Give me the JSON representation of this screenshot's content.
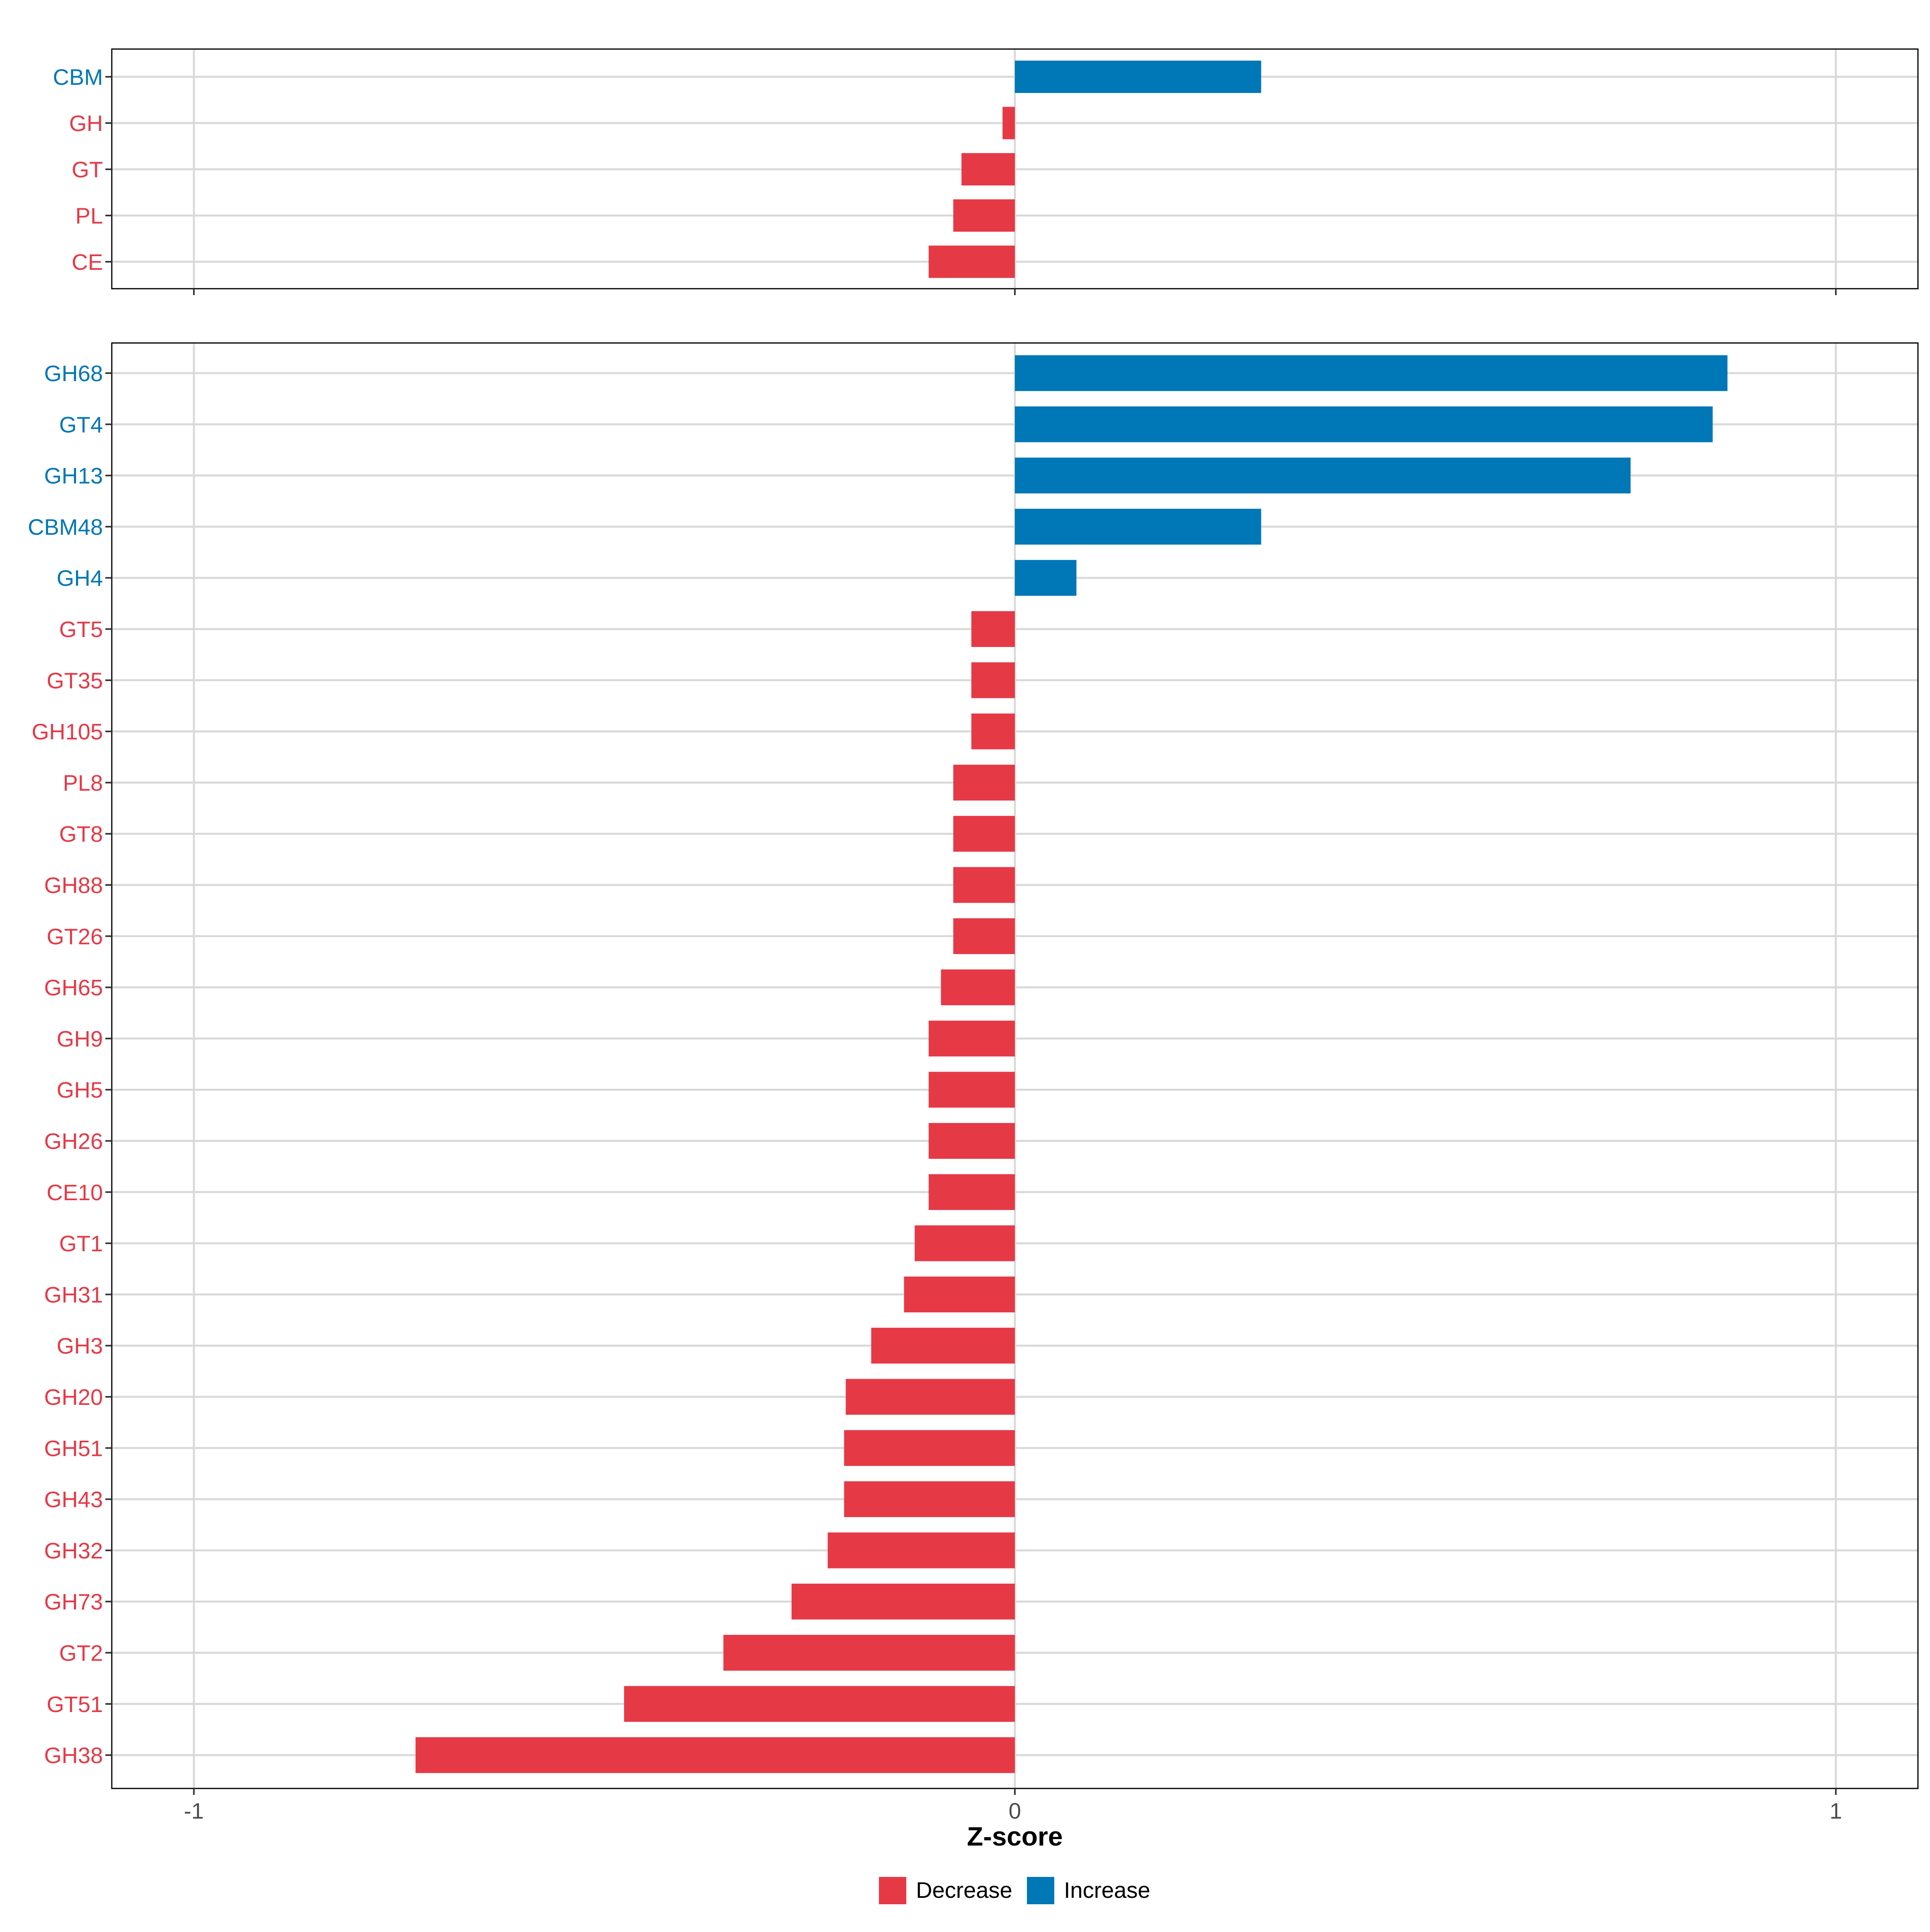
{
  "chart_data": [
    {
      "type": "bar",
      "orientation": "horizontal",
      "panel": "top",
      "categories": [
        "CBM",
        "GH",
        "GT",
        "PL",
        "CE"
      ],
      "values": [
        0.3,
        -0.015,
        -0.065,
        -0.075,
        -0.105
      ],
      "groups": [
        "Increase",
        "Decrease",
        "Decrease",
        "Decrease",
        "Decrease"
      ],
      "xlim": [
        -1.1,
        1.1
      ],
      "grid": true
    },
    {
      "type": "bar",
      "orientation": "horizontal",
      "panel": "bottom",
      "categories": [
        "GH68",
        "GT4",
        "GH13",
        "CBM48",
        "GH4",
        "GT5",
        "GT35",
        "GH105",
        "PL8",
        "GT8",
        "GH88",
        "GT26",
        "GH65",
        "GH9",
        "GH5",
        "GH26",
        "CE10",
        "GT1",
        "GH31",
        "GH3",
        "GH20",
        "GH51",
        "GH43",
        "GH32",
        "GH73",
        "GT2",
        "GT51",
        "GH38"
      ],
      "values": [
        0.868,
        0.85,
        0.75,
        0.3,
        0.075,
        -0.053,
        -0.053,
        -0.053,
        -0.075,
        -0.075,
        -0.075,
        -0.075,
        -0.09,
        -0.105,
        -0.105,
        -0.105,
        -0.105,
        -0.122,
        -0.135,
        -0.175,
        -0.206,
        -0.208,
        -0.208,
        -0.228,
        -0.272,
        -0.355,
        -0.476,
        -0.73
      ],
      "groups": [
        "Increase",
        "Increase",
        "Increase",
        "Increase",
        "Increase",
        "Decrease",
        "Decrease",
        "Decrease",
        "Decrease",
        "Decrease",
        "Decrease",
        "Decrease",
        "Decrease",
        "Decrease",
        "Decrease",
        "Decrease",
        "Decrease",
        "Decrease",
        "Decrease",
        "Decrease",
        "Decrease",
        "Decrease",
        "Decrease",
        "Decrease",
        "Decrease",
        "Decrease",
        "Decrease",
        "Decrease"
      ],
      "xlim": [
        -1.1,
        1.1
      ],
      "grid": true,
      "xticks": [
        -1,
        0,
        1
      ],
      "xtick_labels": [
        "-1",
        "0",
        "1"
      ],
      "xlabel": "Z-score"
    }
  ],
  "legend": {
    "position": "bottom",
    "entries": [
      {
        "label": "Decrease",
        "color": "#E63946"
      },
      {
        "label": "Increase",
        "color": "#0077B6"
      }
    ]
  },
  "colors": {
    "Decrease": "#E63946",
    "Increase": "#0077B6",
    "grid": "#D9D9D9",
    "frame": "#000000"
  }
}
